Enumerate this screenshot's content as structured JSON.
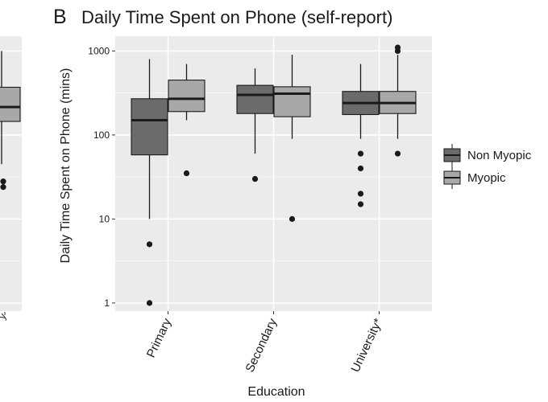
{
  "panel_letter": "B",
  "chart_data": {
    "type": "boxplot",
    "title": "Daily Time Spent on Phone (self-report)",
    "xlabel": "Education",
    "ylabel": "Daily Time Spent on Phone (mins)",
    "y_scale": "log10",
    "ylim": [
      0.8,
      1500
    ],
    "y_ticks": [
      {
        "value": 1,
        "label": "1"
      },
      {
        "value": 10,
        "label": "10"
      },
      {
        "value": 100,
        "label": "100"
      },
      {
        "value": 1000,
        "label": "1000"
      }
    ],
    "categories": [
      "Primary",
      "Secondary",
      "University*"
    ],
    "grid": true,
    "legend_position": "right",
    "series": [
      {
        "name": "Non Myopic",
        "color": "#6b6b6b",
        "boxes": [
          {
            "low": 10,
            "q1": 58,
            "median": 150,
            "q3": 270,
            "high": 800,
            "outliers": [
              5,
              1
            ]
          },
          {
            "low": 60,
            "q1": 180,
            "median": 300,
            "q3": 390,
            "high": 620,
            "outliers": [
              30
            ]
          },
          {
            "low": 90,
            "q1": 175,
            "median": 240,
            "q3": 330,
            "high": 700,
            "outliers": [
              60,
              40,
              20,
              15
            ]
          }
        ]
      },
      {
        "name": "Myopic",
        "color": "#a8a8a8",
        "boxes": [
          {
            "low": 150,
            "q1": 190,
            "median": 270,
            "q3": 450,
            "high": 700,
            "outliers": [
              35
            ]
          },
          {
            "low": 90,
            "q1": 165,
            "median": 310,
            "q3": 375,
            "high": 900,
            "outliers": [
              10
            ]
          },
          {
            "low": 90,
            "q1": 180,
            "median": 240,
            "q3": 330,
            "high": 900,
            "outliers": [
              60,
              1000,
              1100
            ]
          }
        ]
      }
    ]
  },
  "left_panel": {
    "box": {
      "low": 45,
      "q1": 145,
      "median": 215,
      "q3": 370,
      "high": 1000,
      "outliers": [
        28,
        24
      ]
    }
  }
}
